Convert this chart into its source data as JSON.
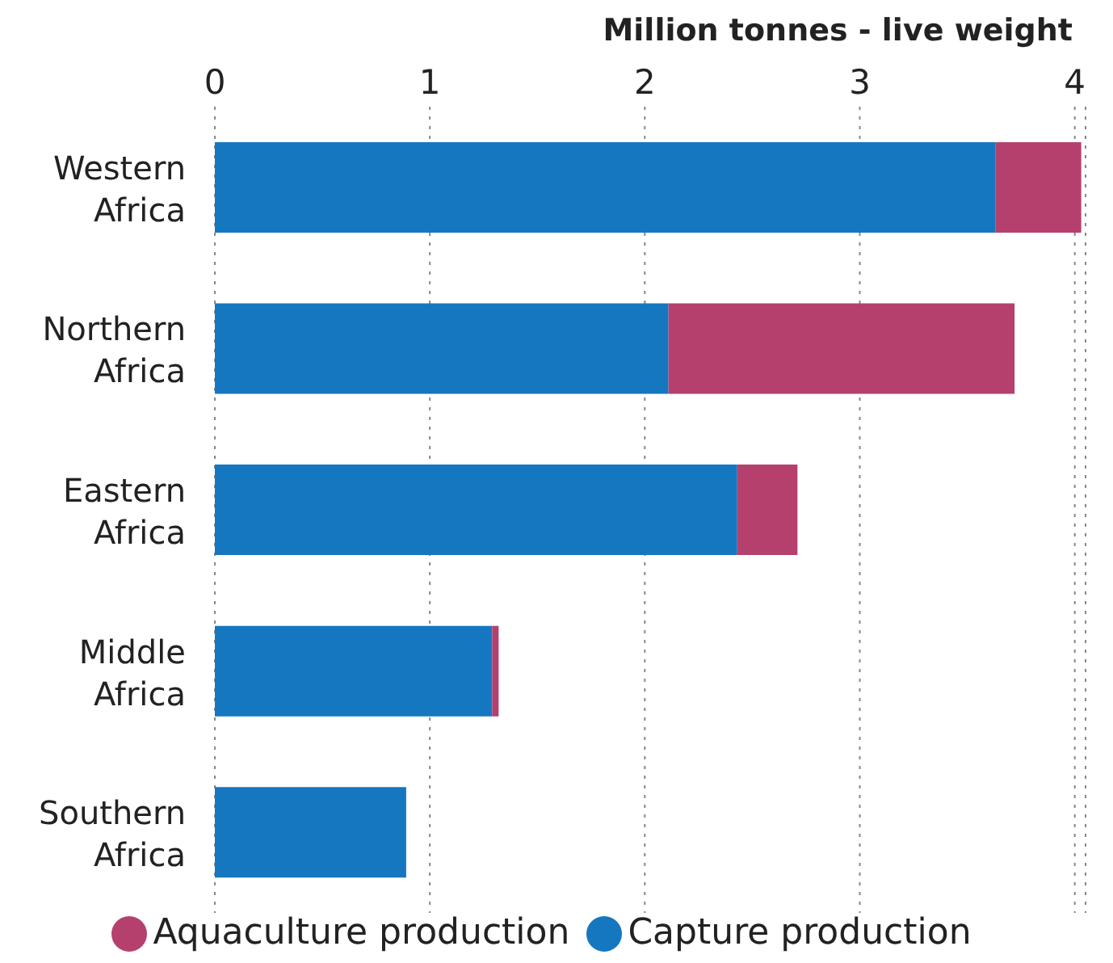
{
  "chart_data": {
    "type": "bar",
    "orientation": "horizontal",
    "stacked": true,
    "xlabel": "Million tonnes - live weight",
    "categories": [
      "Western Africa",
      "Northern Africa",
      "Eastern Africa",
      "Middle Africa",
      "Southern Africa"
    ],
    "series": [
      {
        "name": "Capture production",
        "color": "#1577c0",
        "values": [
          3.63,
          2.11,
          2.43,
          1.29,
          0.89
        ]
      },
      {
        "name": "Aquaculture production",
        "color": "#b5406e",
        "values": [
          0.4,
          1.61,
          0.28,
          0.03,
          0
        ]
      }
    ],
    "xlim": [
      0,
      4.05
    ],
    "xticks": [
      0,
      1,
      2,
      3,
      4
    ],
    "grid": "x",
    "legend": "bottom"
  }
}
